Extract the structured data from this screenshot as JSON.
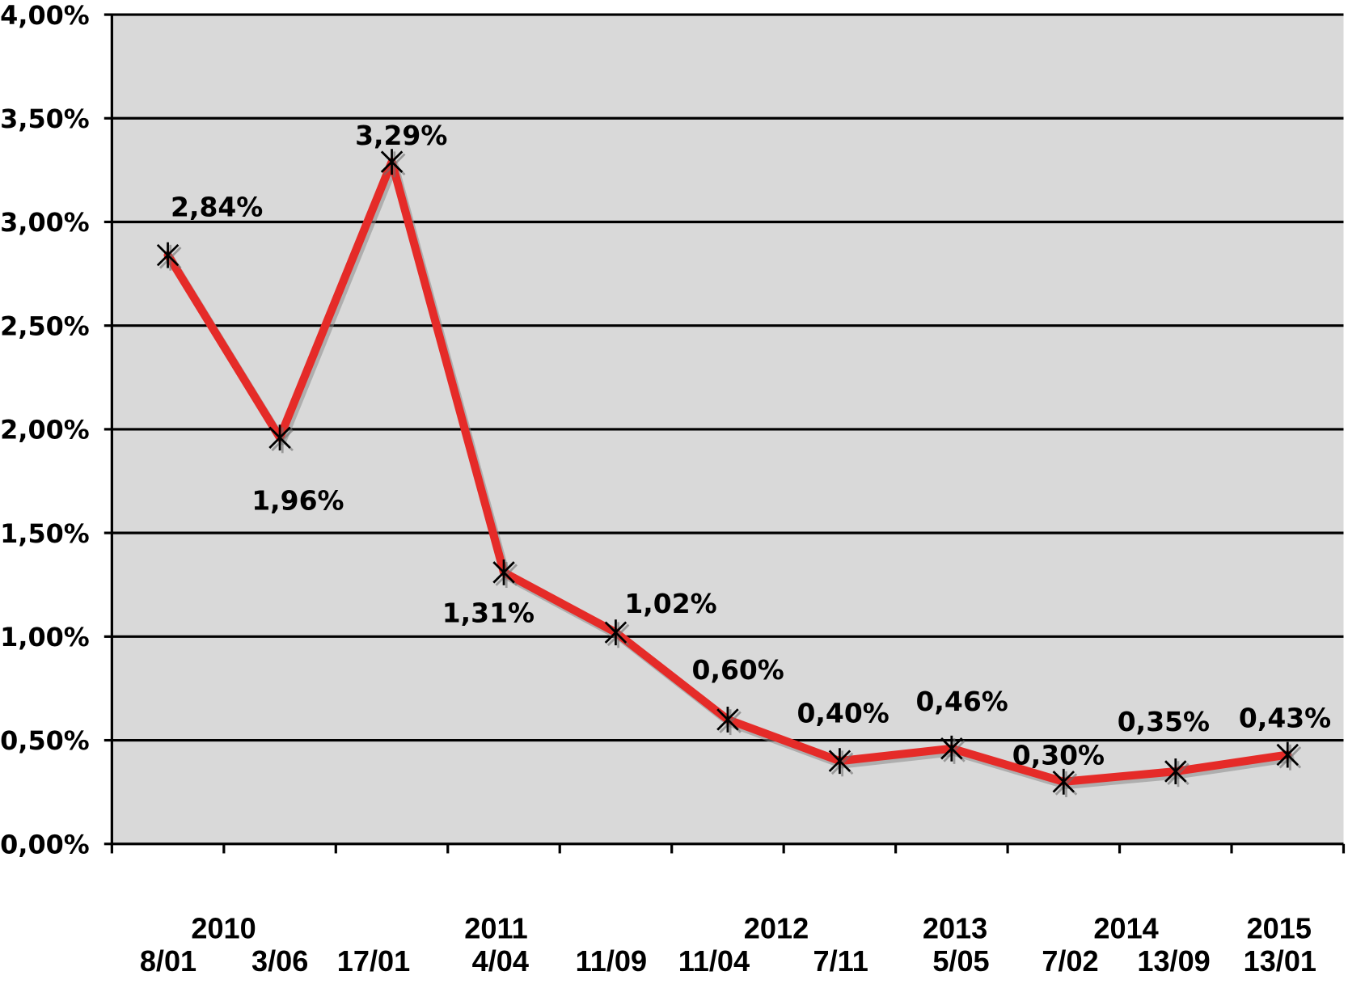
{
  "chart_data": {
    "type": "line",
    "categories": [
      "8/01",
      "3/06",
      "17/01",
      "4/04",
      "11/09",
      "11/04",
      "7/11",
      "5/05",
      "7/02",
      "13/09",
      "13/01"
    ],
    "years": [
      "2010",
      "2011",
      "2012",
      "2013",
      "2014",
      "2015"
    ],
    "series": [
      {
        "values": [
          2.84,
          1.96,
          3.29,
          1.31,
          1.02,
          0.6,
          0.4,
          0.46,
          0.3,
          0.35,
          0.43
        ],
        "data_labels": [
          "2,84%",
          "1,96%",
          "3,29%",
          "1,31%",
          "1,02%",
          "0,60%",
          "0,40%",
          "0,46%",
          "0,30%",
          "0,35%",
          "0,43%"
        ],
        "color": "#E52B28",
        "marker": "star"
      }
    ],
    "ylim": [
      0,
      4
    ],
    "yticks": [
      0,
      0.5,
      1,
      1.5,
      2,
      2.5,
      3,
      3.5,
      4
    ],
    "ytick_labels": [
      "0,00%",
      "0,50%",
      "1,00%",
      "1,50%",
      "2,00%",
      "2,50%",
      "3,00%",
      "3,50%",
      "4,00%"
    ],
    "grid": true,
    "plot_background": "#D9D9D9",
    "gridline_color": "#000000"
  }
}
